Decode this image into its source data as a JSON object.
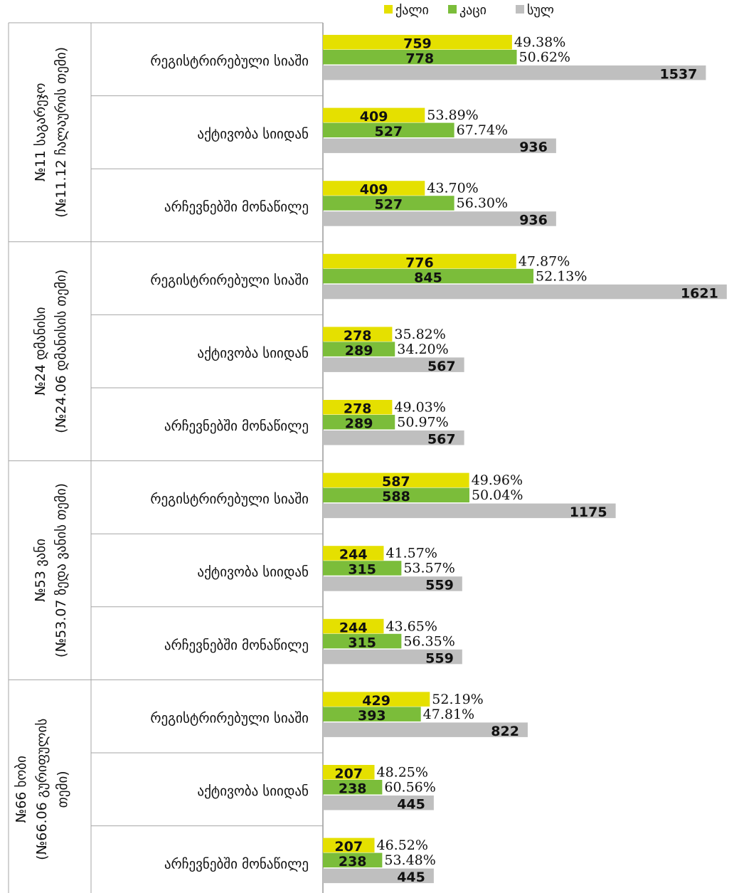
{
  "chart_data": {
    "type": "bar",
    "orientation": "horizontal",
    "legend": {
      "placement": "top",
      "items": [
        {
          "name": "ქალი",
          "color": "#e5e000"
        },
        {
          "name": "კაცი",
          "color": "#7bbd3a"
        },
        {
          "name": "სულ",
          "color": "#bfbfbf"
        }
      ]
    },
    "groups": [
      {
        "label_line1": "№11 საგარეჯო",
        "label_line2": "(№11.12 ჩალაურის თემი)",
        "rows": [
          {
            "category": "რეგისტრირებული სიაში",
            "female": 759,
            "male": 778,
            "total": 1537,
            "female_pct": "49.38%",
            "male_pct": "50.62%"
          },
          {
            "category": "აქტივობა სიიდან",
            "female": 409,
            "male": 527,
            "total": 936,
            "female_pct": "53.89%",
            "male_pct": "67.74%"
          },
          {
            "category": "არჩევნებში მონაწილე",
            "female": 409,
            "male": 527,
            "total": 936,
            "female_pct": "43.70%",
            "male_pct": "56.30%"
          }
        ]
      },
      {
        "label_line1": "№24 დმანისი",
        "label_line2": "(№24.06 დმანისის თემი)",
        "rows": [
          {
            "category": "რეგისტრირებული სიაში",
            "female": 776,
            "male": 845,
            "total": 1621,
            "female_pct": "47.87%",
            "male_pct": "52.13%"
          },
          {
            "category": "აქტივობა სიიდან",
            "female": 278,
            "male": 289,
            "total": 567,
            "female_pct": "35.82%",
            "male_pct": "34.20%"
          },
          {
            "category": "არჩევნებში მონაწილე",
            "female": 278,
            "male": 289,
            "total": 567,
            "female_pct": "49.03%",
            "male_pct": "50.97%"
          }
        ]
      },
      {
        "label_line1": "№53 ვანი",
        "label_line2": "(№53.07 ზედა ვანის თემი)",
        "rows": [
          {
            "category": "რეგისტრირებული სიაში",
            "female": 587,
            "male": 588,
            "total": 1175,
            "female_pct": "49.96%",
            "male_pct": "50.04%"
          },
          {
            "category": "აქტივობა სიიდან",
            "female": 244,
            "male": 315,
            "total": 559,
            "female_pct": "41.57%",
            "male_pct": "53.57%"
          },
          {
            "category": "არჩევნებში მონაწილე",
            "female": 244,
            "male": 315,
            "total": 559,
            "female_pct": "43.65%",
            "male_pct": "56.35%"
          }
        ]
      },
      {
        "label_line1": "№66 ხობი",
        "label_line2": "(№66.06 გურიფულის",
        "label_line3": "თემი)",
        "rows": [
          {
            "category": "რეგისტრირებული სიაში",
            "female": 429,
            "male": 393,
            "total": 822,
            "female_pct": "52.19%",
            "male_pct": "47.81%"
          },
          {
            "category": "აქტივობა სიიდან",
            "female": 207,
            "male": 238,
            "total": 445,
            "female_pct": "48.25%",
            "male_pct": "60.56%"
          },
          {
            "category": "არჩევნებში მონაწილე",
            "female": 207,
            "male": 238,
            "total": 445,
            "female_pct": "46.52%",
            "male_pct": "53.48%"
          }
        ]
      }
    ],
    "xlim": [
      0,
      1650
    ],
    "grid": false
  }
}
